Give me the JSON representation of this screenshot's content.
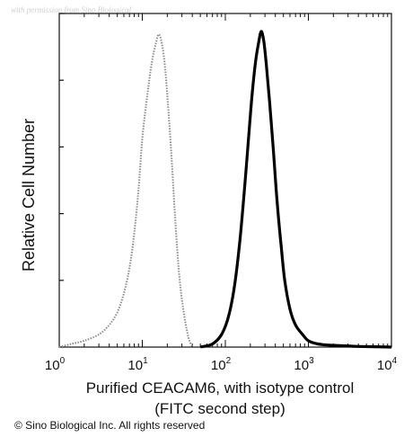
{
  "watermark": "with permission from Sino Biological",
  "copyright": "© Sino Biological Inc. All rights reserved",
  "chart_data": {
    "type": "line",
    "title": "",
    "xlabel_line1": "Purified CEACAM6, with isotype control",
    "xlabel_line2": "(FITC second step)",
    "ylabel": "Relative Cell Number",
    "xscale": "log",
    "xlim": [
      1,
      10000
    ],
    "ylim": [
      0,
      1
    ],
    "xticks": [
      {
        "base": "10",
        "exp": "0"
      },
      {
        "base": "10",
        "exp": "1"
      },
      {
        "base": "10",
        "exp": "2"
      },
      {
        "base": "10",
        "exp": "3"
      },
      {
        "base": "10",
        "exp": "4"
      }
    ],
    "grid": false,
    "series": [
      {
        "style": "dotted-gray",
        "color": "#8a8a8a",
        "x": [
          1.0,
          1.4,
          2.0,
          3.0,
          4.0,
          5.0,
          6.0,
          7.0,
          8.0,
          9.0,
          10.0,
          11.5,
          13.0,
          14.5,
          16.0,
          18.0,
          20.0,
          22.5,
          25.0,
          28.0,
          32.0,
          36.0,
          40.0
        ],
        "y": [
          0.0,
          0.01,
          0.02,
          0.04,
          0.07,
          0.11,
          0.17,
          0.25,
          0.36,
          0.5,
          0.66,
          0.8,
          0.9,
          0.96,
          0.99,
          0.93,
          0.8,
          0.6,
          0.4,
          0.22,
          0.1,
          0.03,
          0.0
        ]
      },
      {
        "style": "solid-black",
        "color": "#000000",
        "x": [
          50,
          70,
          90,
          110,
          130,
          150,
          170,
          190,
          210,
          230,
          250,
          270,
          290,
          310,
          340,
          380,
          420,
          470,
          520,
          600,
          700,
          850,
          1000,
          1300,
          1800,
          2800,
          4000,
          10000
        ],
        "y": [
          0.0,
          0.01,
          0.04,
          0.1,
          0.2,
          0.34,
          0.5,
          0.66,
          0.8,
          0.9,
          0.96,
          1.0,
          0.97,
          0.9,
          0.78,
          0.62,
          0.46,
          0.32,
          0.21,
          0.12,
          0.07,
          0.04,
          0.02,
          0.01,
          0.006,
          0.004,
          0.002,
          0.0
        ]
      }
    ]
  }
}
